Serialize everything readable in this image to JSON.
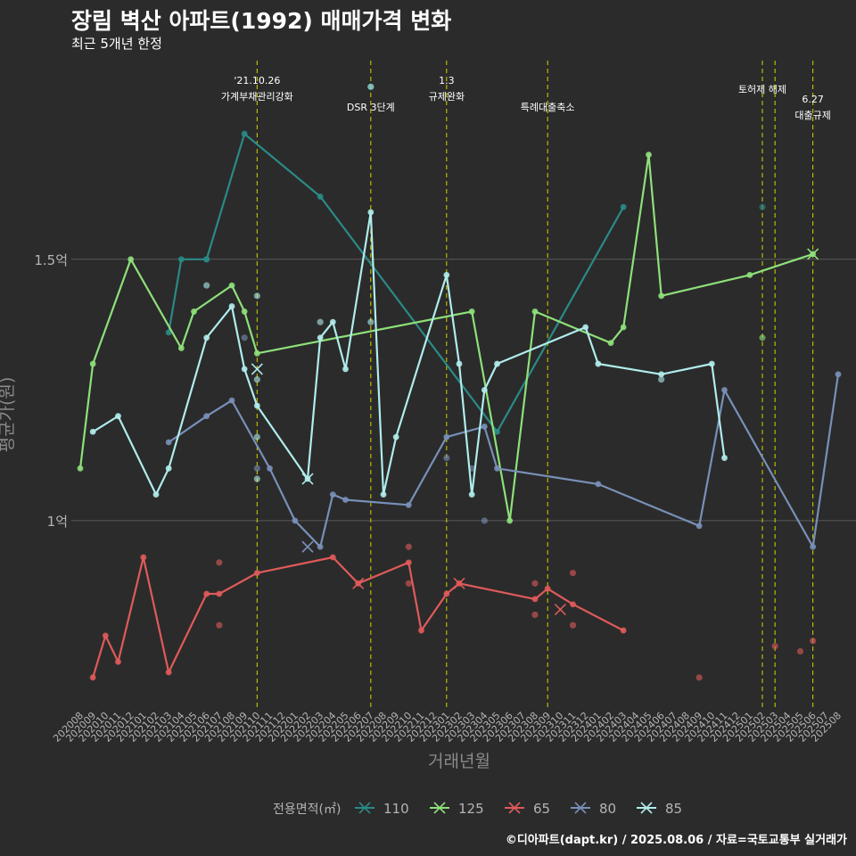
{
  "title": "장림 벽산 아파트(1992) 매매가격 변화",
  "subtitle": "최근 5개년 한정",
  "caption": "©디아파트(dapt.kr) / 2025.08.06 / 자료=국토교통부 실거래가",
  "colors": {
    "background": "#2b2b2b",
    "grid": "#5a5a5a",
    "event_line": "#d4d400",
    "axis_text": "#b4b4b4",
    "s110": "#2a8a86",
    "s125": "#8ee07a",
    "s65": "#e05a5a",
    "s80": "#7890b8",
    "s85": "#b0ecec"
  },
  "chart_data": {
    "type": "line",
    "xlabel": "거래년월",
    "ylabel": "평균가(원)",
    "ylim": [
      0.64,
      1.88
    ],
    "y_ticks": [
      {
        "value": 1.0,
        "label": "1억"
      },
      {
        "value": 1.5,
        "label": "1.5억"
      }
    ],
    "grid": true,
    "x_months": [
      "202008",
      "202009",
      "202010",
      "202011",
      "202012",
      "202101",
      "202102",
      "202103",
      "202104",
      "202105",
      "202106",
      "202107",
      "202108",
      "202109",
      "202110",
      "202111",
      "202112",
      "202201",
      "202202",
      "202203",
      "202204",
      "202205",
      "202206",
      "202207",
      "202208",
      "202209",
      "202210",
      "202211",
      "202212",
      "202301",
      "202302",
      "202303",
      "202304",
      "202305",
      "202306",
      "202307",
      "202308",
      "202309",
      "202310",
      "202311",
      "202312",
      "202401",
      "202402",
      "202403",
      "202404",
      "202405",
      "202406",
      "202407",
      "202408",
      "202409",
      "202410",
      "202411",
      "202412",
      "202501",
      "202502",
      "202503",
      "202504",
      "202505",
      "202506",
      "202507",
      "202508"
    ],
    "events": [
      {
        "month": "202110",
        "lines": [
          "'21.10.26",
          "가계부채관리강화"
        ]
      },
      {
        "month": "202207",
        "lines": [
          "DSR 3단계"
        ]
      },
      {
        "month": "202301",
        "lines": [
          "1.3",
          "규제완화"
        ]
      },
      {
        "month": "202309",
        "lines": [
          "특례대출축소"
        ]
      },
      {
        "month": "202502",
        "lines": [
          "토허제 해제"
        ]
      },
      {
        "month": "202503",
        "lines": []
      },
      {
        "month": "202506",
        "lines": [
          "6.27",
          "대출규제"
        ]
      }
    ],
    "legend": {
      "title": "전용면적(㎡)",
      "position": "bottom"
    },
    "series": [
      {
        "name": "110",
        "color": "#2a8a86",
        "line": [
          [
            "202103",
            1.36
          ],
          [
            "202104",
            1.5
          ],
          [
            "202106",
            1.5
          ],
          [
            "202109",
            1.74
          ],
          [
            "202203",
            1.62
          ],
          [
            "202305",
            1.17
          ],
          [
            "202403",
            1.6
          ]
        ],
        "points": [
          [
            "202106",
            1.5
          ],
          [
            "202207",
            1.83
          ],
          [
            "202502",
            1.6
          ]
        ],
        "crosses": []
      },
      {
        "name": "125",
        "color": "#8ee07a",
        "line": [
          [
            "202008",
            1.1
          ],
          [
            "202009",
            1.3
          ],
          [
            "202012",
            1.5
          ],
          [
            "202104",
            1.33
          ],
          [
            "202105",
            1.4
          ],
          [
            "202108",
            1.45
          ],
          [
            "202109",
            1.4
          ],
          [
            "202110",
            1.32
          ],
          [
            "202303",
            1.4
          ],
          [
            "202306",
            1.0
          ],
          [
            "202308",
            1.4
          ],
          [
            "202402",
            1.34
          ],
          [
            "202403",
            1.37
          ],
          [
            "202405",
            1.7
          ],
          [
            "202406",
            1.43
          ],
          [
            "202501",
            1.47
          ],
          [
            "202506",
            1.51
          ]
        ],
        "points": [
          [
            "202502",
            1.35
          ]
        ],
        "crosses": [
          [
            "202506",
            1.51
          ]
        ]
      },
      {
        "name": "65",
        "color": "#e05a5a",
        "line": [
          [
            "202009",
            0.7
          ],
          [
            "202010",
            0.78
          ],
          [
            "202011",
            0.73
          ],
          [
            "202101",
            0.93
          ],
          [
            "202103",
            0.71
          ],
          [
            "202106",
            0.86
          ],
          [
            "202107",
            0.86
          ],
          [
            "202110",
            0.9
          ],
          [
            "202204",
            0.93
          ],
          [
            "202206",
            0.88
          ],
          [
            "202210",
            0.92
          ],
          [
            "202211",
            0.79
          ],
          [
            "202301",
            0.86
          ],
          [
            "202302",
            0.88
          ],
          [
            "202308",
            0.85
          ],
          [
            "202309",
            0.87
          ],
          [
            "202311",
            0.84
          ],
          [
            "202403",
            0.79
          ]
        ],
        "points": [
          [
            "202107",
            0.92
          ],
          [
            "202107",
            0.8
          ],
          [
            "202210",
            0.95
          ],
          [
            "202210",
            0.88
          ],
          [
            "202308",
            0.88
          ],
          [
            "202308",
            0.82
          ],
          [
            "202311",
            0.9
          ],
          [
            "202311",
            0.8
          ],
          [
            "202409",
            0.7
          ],
          [
            "202503",
            0.76
          ],
          [
            "202505",
            0.75
          ],
          [
            "202506",
            0.77
          ]
        ],
        "crosses": [
          [
            "202206",
            0.88
          ],
          [
            "202302",
            0.88
          ],
          [
            "202310",
            0.83
          ]
        ]
      },
      {
        "name": "80",
        "color": "#7890b8",
        "line": [
          [
            "202103",
            1.15
          ],
          [
            "202106",
            1.2
          ],
          [
            "202108",
            1.23
          ],
          [
            "202111",
            1.1
          ],
          [
            "202201",
            1.0
          ],
          [
            "202203",
            0.95
          ],
          [
            "202204",
            1.05
          ],
          [
            "202205",
            1.04
          ],
          [
            "202210",
            1.03
          ],
          [
            "202301",
            1.16
          ],
          [
            "202304",
            1.18
          ],
          [
            "202305",
            1.1
          ],
          [
            "202401",
            1.07
          ],
          [
            "202409",
            0.99
          ],
          [
            "202411",
            1.25
          ],
          [
            "202506",
            0.95
          ],
          [
            "202508",
            1.28
          ]
        ],
        "points": [
          [
            "202109",
            1.35
          ],
          [
            "202110",
            1.1
          ],
          [
            "202301",
            1.12
          ],
          [
            "202303",
            1.1
          ],
          [
            "202304",
            1.0
          ]
        ],
        "crosses": [
          [
            "202202",
            0.95
          ]
        ]
      },
      {
        "name": "85",
        "color": "#b0ecec",
        "line": [
          [
            "202009",
            1.17
          ],
          [
            "202011",
            1.2
          ],
          [
            "202102",
            1.05
          ],
          [
            "202103",
            1.1
          ],
          [
            "202106",
            1.35
          ],
          [
            "202108",
            1.41
          ],
          [
            "202109",
            1.29
          ],
          [
            "202110",
            1.22
          ],
          [
            "202202",
            1.08
          ],
          [
            "202203",
            1.35
          ],
          [
            "202204",
            1.38
          ],
          [
            "202205",
            1.29
          ],
          [
            "202207",
            1.59
          ],
          [
            "202208",
            1.05
          ],
          [
            "202209",
            1.16
          ],
          [
            "202301",
            1.47
          ],
          [
            "202302",
            1.3
          ],
          [
            "202303",
            1.05
          ],
          [
            "202304",
            1.25
          ],
          [
            "202305",
            1.3
          ],
          [
            "202312",
            1.37
          ],
          [
            "202401",
            1.3
          ],
          [
            "202406",
            1.28
          ],
          [
            "202410",
            1.3
          ],
          [
            "202411",
            1.12
          ]
        ],
        "points": [
          [
            "202106",
            1.45
          ],
          [
            "202110",
            1.43
          ],
          [
            "202110",
            1.27
          ],
          [
            "202110",
            1.16
          ],
          [
            "202110",
            1.08
          ],
          [
            "202203",
            1.38
          ],
          [
            "202207",
            1.38
          ],
          [
            "202207",
            1.83
          ],
          [
            "202406",
            1.27
          ]
        ],
        "crosses": [
          [
            "202110",
            1.29
          ],
          [
            "202202",
            1.08
          ]
        ]
      }
    ]
  }
}
